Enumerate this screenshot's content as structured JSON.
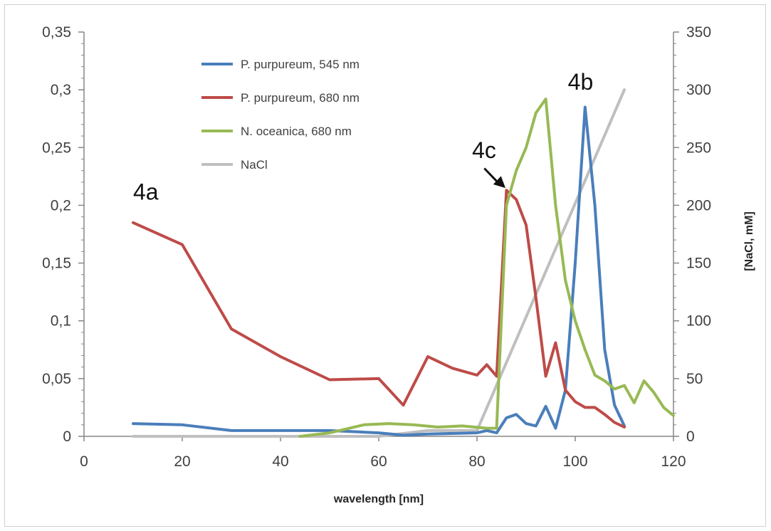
{
  "chart_data": {
    "type": "line",
    "xlabel": "wavelength [nm]",
    "ylabel": "",
    "y2label": "[NaCl, mM]",
    "xlim": [
      0,
      120
    ],
    "ylim": [
      0,
      0.35
    ],
    "y2lim": [
      0,
      350
    ],
    "x_ticks": [
      "0",
      "20",
      "40",
      "60",
      "80",
      "100",
      "120"
    ],
    "y_ticks": [
      "0",
      "0,05",
      "0,1",
      "0,15",
      "0,2",
      "0,25",
      "0,3",
      "0,35"
    ],
    "y2_ticks": [
      "0",
      "50",
      "100",
      "150",
      "200",
      "250",
      "300",
      "350"
    ],
    "x_tick_values": [
      0,
      20,
      40,
      60,
      80,
      100,
      120
    ],
    "y_tick_values": [
      0,
      0.05,
      0.1,
      0.15,
      0.2,
      0.25,
      0.3,
      0.35
    ],
    "y2_tick_values": [
      0,
      50,
      100,
      150,
      200,
      250,
      300,
      350
    ],
    "grid": false,
    "legend_position": "top-left",
    "series": [
      {
        "name": "P. purpureum, 545 nm",
        "color": "#4a7ebb",
        "axis": "left",
        "x": [
          10,
          20,
          30,
          40,
          50,
          60,
          65,
          70,
          80,
          82,
          84,
          86,
          88,
          90,
          92,
          94,
          96,
          98,
          100,
          102,
          104,
          106,
          108,
          110
        ],
        "y": [
          0.011,
          0.01,
          0.005,
          0.005,
          0.005,
          0.003,
          0.001,
          0.002,
          0.003,
          0.005,
          0.003,
          0.016,
          0.019,
          0.011,
          0.009,
          0.026,
          0.007,
          0.04,
          0.15,
          0.285,
          0.2,
          0.075,
          0.027,
          0.009
        ]
      },
      {
        "name": "P. purpureum, 680 nm",
        "color": "#be4b48",
        "axis": "left",
        "x": [
          10,
          20,
          30,
          40,
          50,
          60,
          65,
          70,
          75,
          80,
          82,
          84,
          86,
          88,
          90,
          92,
          94,
          96,
          98,
          100,
          102,
          104,
          106,
          108,
          110
        ],
        "y": [
          0.185,
          0.166,
          0.093,
          0.069,
          0.049,
          0.05,
          0.027,
          0.069,
          0.059,
          0.053,
          0.062,
          0.052,
          0.213,
          0.205,
          0.183,
          0.12,
          0.052,
          0.081,
          0.04,
          0.03,
          0.025,
          0.025,
          0.019,
          0.012,
          0.008
        ]
      },
      {
        "name": "N. oceanica, 680 nm",
        "color": "#98b954",
        "axis": "left",
        "x": [
          44,
          50,
          52,
          57,
          62,
          67,
          72,
          77,
          82,
          84,
          86,
          88,
          90,
          92,
          94,
          96,
          98,
          100,
          102,
          104,
          106,
          108,
          110,
          112,
          114,
          116,
          118,
          120
        ],
        "y": [
          0.0,
          0.003,
          0.005,
          0.01,
          0.011,
          0.01,
          0.008,
          0.009,
          0.007,
          0.007,
          0.2,
          0.23,
          0.25,
          0.28,
          0.292,
          0.2,
          0.135,
          0.1,
          0.075,
          0.053,
          0.048,
          0.041,
          0.044,
          0.029,
          0.048,
          0.038,
          0.025,
          0.018
        ]
      },
      {
        "name": "NaCl",
        "color": "#bfbfbf",
        "axis": "right",
        "x": [
          10,
          20,
          30,
          40,
          50,
          55,
          60,
          70,
          80,
          110
        ],
        "y": [
          0,
          0,
          0,
          0,
          0,
          0,
          0,
          5,
          5,
          300
        ]
      }
    ],
    "annotations": [
      {
        "text": "4a",
        "x": 10,
        "y": 0.205
      },
      {
        "text": "4b",
        "x": 98.5,
        "y": 0.3
      },
      {
        "text": "4c",
        "x": 79,
        "y": 0.241
      }
    ]
  }
}
